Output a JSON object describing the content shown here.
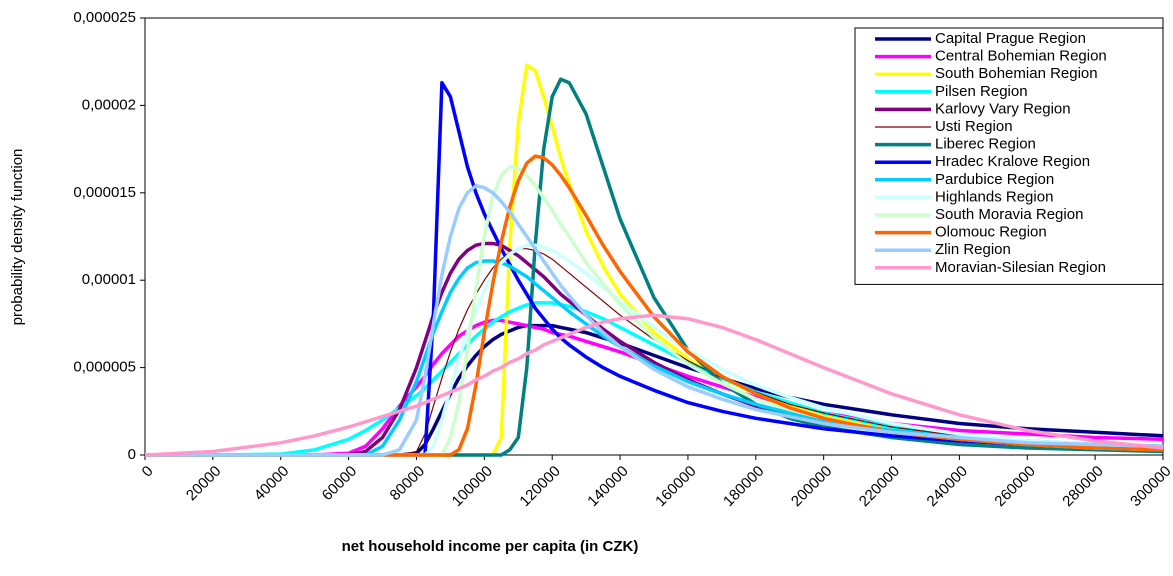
{
  "chart_data": {
    "type": "line",
    "x_label": "net household income per capita (in CZK)",
    "y_label": "probability density function",
    "x": [
      0,
      20000,
      40000,
      50000,
      60000,
      65000,
      70000,
      75000,
      80000,
      82500,
      85000,
      87500,
      90000,
      92500,
      95000,
      97500,
      100000,
      102500,
      105000,
      107500,
      110000,
      112500,
      115000,
      117500,
      120000,
      122500,
      125000,
      130000,
      135000,
      140000,
      150000,
      160000,
      170000,
      180000,
      190000,
      200000,
      220000,
      240000,
      260000,
      280000,
      300000
    ],
    "xlim": [
      0,
      300000
    ],
    "xticks": [
      0,
      20000,
      40000,
      60000,
      80000,
      100000,
      120000,
      140000,
      160000,
      180000,
      200000,
      220000,
      240000,
      260000,
      280000,
      300000
    ],
    "ylim": [
      0,
      2.5e-05
    ],
    "yticks": [
      0,
      {
        "value": 5e-06,
        "label": "0,000005"
      },
      {
        "value": 1e-05,
        "label": "0,00001"
      },
      {
        "value": 1.5e-05,
        "label": "0,000015"
      },
      {
        "value": 2e-05,
        "label": "0,00002"
      },
      {
        "value": 2.5e-05,
        "label": "0,000025"
      }
    ],
    "grid": false,
    "legend": "upper right",
    "series": [
      {
        "name": "Capital Prague Region",
        "color": "#000080",
        "line_width": 3.5,
        "values": [
          0,
          0,
          0,
          0,
          0,
          0,
          0,
          0,
          1e-07,
          6e-07,
          1.5e-06,
          2.5e-06,
          3.5e-06,
          4.4e-06,
          5.1e-06,
          5.7e-06,
          6.2e-06,
          6.6e-06,
          6.9e-06,
          7.1e-06,
          7.3e-06,
          7.4e-06,
          7.4e-06,
          7.4e-06,
          7.4e-06,
          7.3e-06,
          7.2e-06,
          7e-06,
          6.7e-06,
          6.4e-06,
          5.7e-06,
          5e-06,
          4.4e-06,
          3.8e-06,
          3.3e-06,
          2.9e-06,
          2.3e-06,
          1.8e-06,
          1.5e-06,
          1.3e-06,
          1.1e-06
        ]
      },
      {
        "name": "Central Bohemian Region",
        "color": "#FF00FF",
        "line_width": 3.5,
        "values": [
          0,
          0,
          0,
          0,
          1e-07,
          5e-07,
          1.5e-06,
          2.8e-06,
          3.9e-06,
          4.5e-06,
          5.2e-06,
          5.8e-06,
          6.3e-06,
          6.8e-06,
          7.1e-06,
          7.4e-06,
          7.6e-06,
          7.7e-06,
          7.7e-06,
          7.6e-06,
          7.5e-06,
          7.4e-06,
          7.3e-06,
          7.2e-06,
          7e-06,
          6.9e-06,
          6.8e-06,
          6.5e-06,
          6.2e-06,
          5.9e-06,
          5.2e-06,
          4.5e-06,
          3.9e-06,
          3.3e-06,
          2.8e-06,
          2.4e-06,
          1.8e-06,
          1.4e-06,
          1.2e-06,
          1e-06,
          9e-07
        ]
      },
      {
        "name": "South Bohemian Region",
        "color": "#FFFF00",
        "line_width": 3.5,
        "values": [
          0,
          0,
          0,
          0,
          0,
          0,
          0,
          0,
          0,
          0,
          0,
          0,
          0,
          0,
          0,
          0,
          0,
          0,
          1e-06,
          1.2e-05,
          1.9e-05,
          2.23e-05,
          2.2e-05,
          2.05e-05,
          1.88e-05,
          1.7e-05,
          1.55e-05,
          1.28e-05,
          1.08e-05,
          9.2e-06,
          7e-06,
          5.5e-06,
          4.4e-06,
          3.5e-06,
          2.8e-06,
          2.3e-06,
          1.5e-06,
          1e-06,
          7e-07,
          5e-07,
          3e-07
        ]
      },
      {
        "name": "Pilsen Region",
        "color": "#00FFFF",
        "line_width": 3.5,
        "values": [
          0,
          0,
          5e-08,
          3e-07,
          9e-07,
          1.4e-06,
          2e-06,
          2.7e-06,
          3.4e-06,
          3.8e-06,
          4.3e-06,
          4.8e-06,
          5.3e-06,
          5.8e-06,
          6.3e-06,
          6.8e-06,
          7.2e-06,
          7.6e-06,
          7.9e-06,
          8.2e-06,
          8.4e-06,
          8.6e-06,
          8.7e-06,
          8.7e-06,
          8.7e-06,
          8.6e-06,
          8.5e-06,
          8.2e-06,
          7.8e-06,
          7.3e-06,
          6.3e-06,
          5.3e-06,
          4.4e-06,
          3.6e-06,
          3e-06,
          2.4e-06,
          1.6e-06,
          1.1e-06,
          8e-07,
          6e-07,
          5e-07
        ]
      },
      {
        "name": "Karlovy Vary Region",
        "color": "#800080",
        "line_width": 3.5,
        "values": [
          0,
          0,
          0,
          0,
          0,
          2e-07,
          1e-06,
          2.6e-06,
          5e-06,
          6.5e-06,
          8e-06,
          9.3e-06,
          1.04e-05,
          1.12e-05,
          1.17e-05,
          1.2e-05,
          1.21e-05,
          1.21e-05,
          1.2e-05,
          1.17e-05,
          1.14e-05,
          1.1e-05,
          1.06e-05,
          1.02e-05,
          9.7e-06,
          9.2e-06,
          8.8e-06,
          8e-06,
          7.2e-06,
          6.5e-06,
          5.3e-06,
          4.3e-06,
          3.5e-06,
          2.8e-06,
          2.3e-06,
          1.9e-06,
          1.3e-06,
          9e-07,
          6e-07,
          4e-07,
          3e-07
        ]
      },
      {
        "name": "Usti Region",
        "color": "#800000",
        "line_width": 1.2,
        "values": [
          0,
          0,
          0,
          0,
          0,
          0,
          0,
          0,
          2e-07,
          1.2e-06,
          2.8e-06,
          4.4e-06,
          5.9e-06,
          7.2e-06,
          8.3e-06,
          9.2e-06,
          1e-05,
          1.07e-05,
          1.12e-05,
          1.16e-05,
          1.18e-05,
          1.18e-05,
          1.17e-05,
          1.15e-05,
          1.12e-05,
          1.08e-05,
          1.04e-05,
          9.6e-06,
          8.8e-06,
          8e-06,
          6.6e-06,
          5.4e-06,
          4.4e-06,
          3.6e-06,
          2.9e-06,
          2.4e-06,
          1.6e-06,
          1.1e-06,
          8e-07,
          6e-07,
          4e-07
        ]
      },
      {
        "name": "Liberec Region",
        "color": "#008080",
        "line_width": 3.5,
        "values": [
          0,
          0,
          0,
          0,
          0,
          0,
          0,
          0,
          0,
          0,
          0,
          0,
          0,
          0,
          0,
          0,
          0,
          0,
          0,
          3e-07,
          1e-06,
          5e-06,
          1.2e-05,
          1.75e-05,
          2.05e-05,
          2.15e-05,
          2.13e-05,
          1.95e-05,
          1.65e-05,
          1.35e-05,
          9e-06,
          6e-06,
          4.1e-06,
          2.9e-06,
          2.1e-06,
          1.6e-06,
          1e-06,
          6e-07,
          4e-07,
          3e-07,
          2e-07
        ]
      },
      {
        "name": "Hradec Kralove Region",
        "color": "#0000FF",
        "line_width": 3.5,
        "values": [
          0,
          0,
          0,
          0,
          0,
          0,
          0,
          0,
          0,
          0,
          8e-06,
          2.13e-05,
          2.05e-05,
          1.85e-05,
          1.65e-05,
          1.5e-05,
          1.38e-05,
          1.28e-05,
          1.18e-05,
          1.09e-05,
          1e-05,
          9.2e-06,
          8.4e-06,
          7.8e-06,
          7.2e-06,
          6.7e-06,
          6.3e-06,
          5.6e-06,
          5e-06,
          4.5e-06,
          3.7e-06,
          3e-06,
          2.5e-06,
          2.1e-06,
          1.8e-06,
          1.5e-06,
          1.1e-06,
          8e-07,
          6e-07,
          5e-07,
          4e-07
        ]
      },
      {
        "name": "Pardubice Region",
        "color": "#00CCFF",
        "line_width": 3.5,
        "values": [
          0,
          0,
          0,
          0,
          0,
          0,
          5e-07,
          2e-06,
          4.2e-06,
          5.6e-06,
          7e-06,
          8.2e-06,
          9.3e-06,
          1.01e-05,
          1.07e-05,
          1.1e-05,
          1.11e-05,
          1.11e-05,
          1.1e-05,
          1.08e-05,
          1.05e-05,
          1.02e-05,
          9.8e-06,
          9.4e-06,
          9e-06,
          8.6e-06,
          8.2e-06,
          7.5e-06,
          6.8e-06,
          6.2e-06,
          5.1e-06,
          4.2e-06,
          3.5e-06,
          2.9e-06,
          2.4e-06,
          2e-06,
          1.4e-06,
          1e-06,
          8e-07,
          6e-07,
          5e-07
        ]
      },
      {
        "name": "Highlands Region",
        "color": "#CCFFFF",
        "line_width": 3.5,
        "values": [
          0,
          0,
          0,
          0,
          0,
          0,
          0,
          0,
          0,
          0,
          5e-07,
          2e-06,
          3.8e-06,
          5.5e-06,
          7e-06,
          8.3e-06,
          9.4e-06,
          1.03e-05,
          1.1e-05,
          1.15e-05,
          1.18e-05,
          1.2e-05,
          1.2e-05,
          1.19e-05,
          1.17e-05,
          1.14e-05,
          1.11e-05,
          1.04e-05,
          9.6e-06,
          8.8e-06,
          7.3e-06,
          6e-06,
          4.9e-06,
          4e-06,
          3.3e-06,
          2.7e-06,
          1.8e-06,
          1.2e-06,
          8e-07,
          6e-07,
          4e-07
        ]
      },
      {
        "name": "South Moravia Region",
        "color": "#CCFFCC",
        "line_width": 3.5,
        "values": [
          0,
          0,
          0,
          0,
          0,
          0,
          0,
          0,
          0,
          0,
          0,
          0,
          1e-06,
          3e-06,
          6e-06,
          9.5e-06,
          1.25e-05,
          1.48e-05,
          1.6e-05,
          1.65e-05,
          1.64e-05,
          1.6e-05,
          1.54e-05,
          1.47e-05,
          1.4e-05,
          1.32e-05,
          1.25e-05,
          1.1e-05,
          9.8e-06,
          8.6e-06,
          6.7e-06,
          5.2e-06,
          4.1e-06,
          3.2e-06,
          2.6e-06,
          2.1e-06,
          1.3e-06,
          9e-07,
          6e-07,
          4e-07,
          3e-07
        ]
      },
      {
        "name": "Olomouc Region",
        "color": "#FF6600",
        "line_width": 3.5,
        "values": [
          0,
          0,
          0,
          0,
          0,
          0,
          0,
          0,
          0,
          0,
          0,
          0,
          0,
          3e-07,
          1.5e-06,
          4e-06,
          7e-06,
          9.8e-06,
          1.22e-05,
          1.42e-05,
          1.57e-05,
          1.67e-05,
          1.71e-05,
          1.7e-05,
          1.66e-05,
          1.6e-05,
          1.53e-05,
          1.37e-05,
          1.2e-05,
          1.05e-05,
          7.9e-06,
          5.9e-06,
          4.5e-06,
          3.5e-06,
          2.7e-06,
          2.1e-06,
          1.3e-06,
          9e-07,
          6e-07,
          4e-07,
          3e-07
        ]
      },
      {
        "name": "Zlin Region",
        "color": "#99CCFF",
        "line_width": 3.5,
        "values": [
          0,
          0,
          0,
          0,
          0,
          0,
          0,
          3e-07,
          2e-06,
          4.5e-06,
          7.5e-06,
          1.03e-05,
          1.25e-05,
          1.41e-05,
          1.5e-05,
          1.54e-05,
          1.53e-05,
          1.5e-05,
          1.45e-05,
          1.39e-05,
          1.32e-05,
          1.25e-05,
          1.18e-05,
          1.11e-05,
          1.04e-05,
          9.7e-06,
          9.1e-06,
          8e-06,
          7e-06,
          6.2e-06,
          4.9e-06,
          3.9e-06,
          3.2e-06,
          2.6e-06,
          2.2e-06,
          1.8e-06,
          1.3e-06,
          1e-06,
          7e-07,
          6e-07,
          5e-07
        ]
      },
      {
        "name": "Moravian-Silesian Region",
        "color": "#FF99CC",
        "line_width": 3.5,
        "values": [
          0,
          2e-07,
          7e-07,
          1.1e-06,
          1.6e-06,
          1.9e-06,
          2.2e-06,
          2.5e-06,
          2.8e-06,
          3e-06,
          3.2e-06,
          3.4e-06,
          3.6e-06,
          3.8e-06,
          4e-06,
          4.3e-06,
          4.5e-06,
          4.8e-06,
          5e-06,
          5.3e-06,
          5.5e-06,
          5.8e-06,
          6e-06,
          6.3e-06,
          6.5e-06,
          6.7e-06,
          6.9e-06,
          7.3e-06,
          7.6e-06,
          7.8e-06,
          8e-06,
          7.8e-06,
          7.3e-06,
          6.6e-06,
          5.8e-06,
          5e-06,
          3.5e-06,
          2.3e-06,
          1.4e-06,
          8e-07,
          4e-07
        ]
      }
    ]
  }
}
